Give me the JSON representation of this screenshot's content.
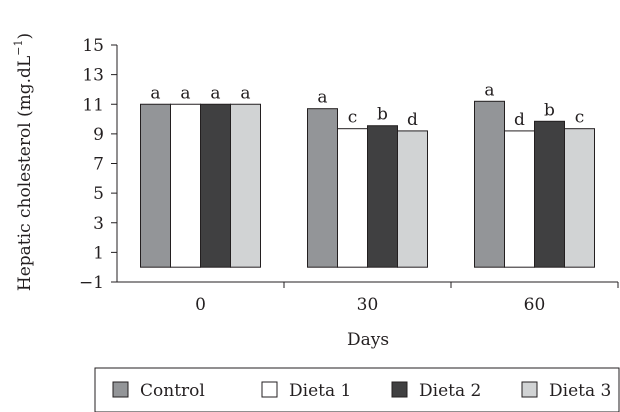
{
  "chart_data": {
    "type": "bar",
    "xlabel": "Days",
    "ylabel": "Hepatic cholesterol (mg.dL",
    "ylabel_superscript": "−1",
    "categories": [
      "0",
      "30",
      "60"
    ],
    "ylim": [
      -1,
      15
    ],
    "yticks": [
      "15",
      "13",
      "11",
      "9",
      "7",
      "5",
      "3",
      "1",
      "−1"
    ],
    "ytick_values": [
      15,
      13,
      11,
      9,
      7,
      5,
      3,
      1,
      -1
    ],
    "grid": false,
    "legend_position": "bottom",
    "series": [
      {
        "name": "Control",
        "values": [
          11.0,
          10.7,
          11.2
        ],
        "letters": [
          "a",
          "a",
          "a"
        ],
        "color": "#939598"
      },
      {
        "name": "Dieta 1",
        "values": [
          11.0,
          9.35,
          9.2
        ],
        "letters": [
          "a",
          "c",
          "d"
        ],
        "color": "#ffffff"
      },
      {
        "name": "Dieta 2",
        "values": [
          11.0,
          9.55,
          9.85
        ],
        "letters": [
          "a",
          "b",
          "b"
        ],
        "color": "#404041"
      },
      {
        "name": "Dieta 3",
        "values": [
          11.0,
          9.2,
          9.35
        ],
        "letters": [
          "a",
          "d",
          "c"
        ],
        "color": "#d1d3d4"
      }
    ]
  }
}
